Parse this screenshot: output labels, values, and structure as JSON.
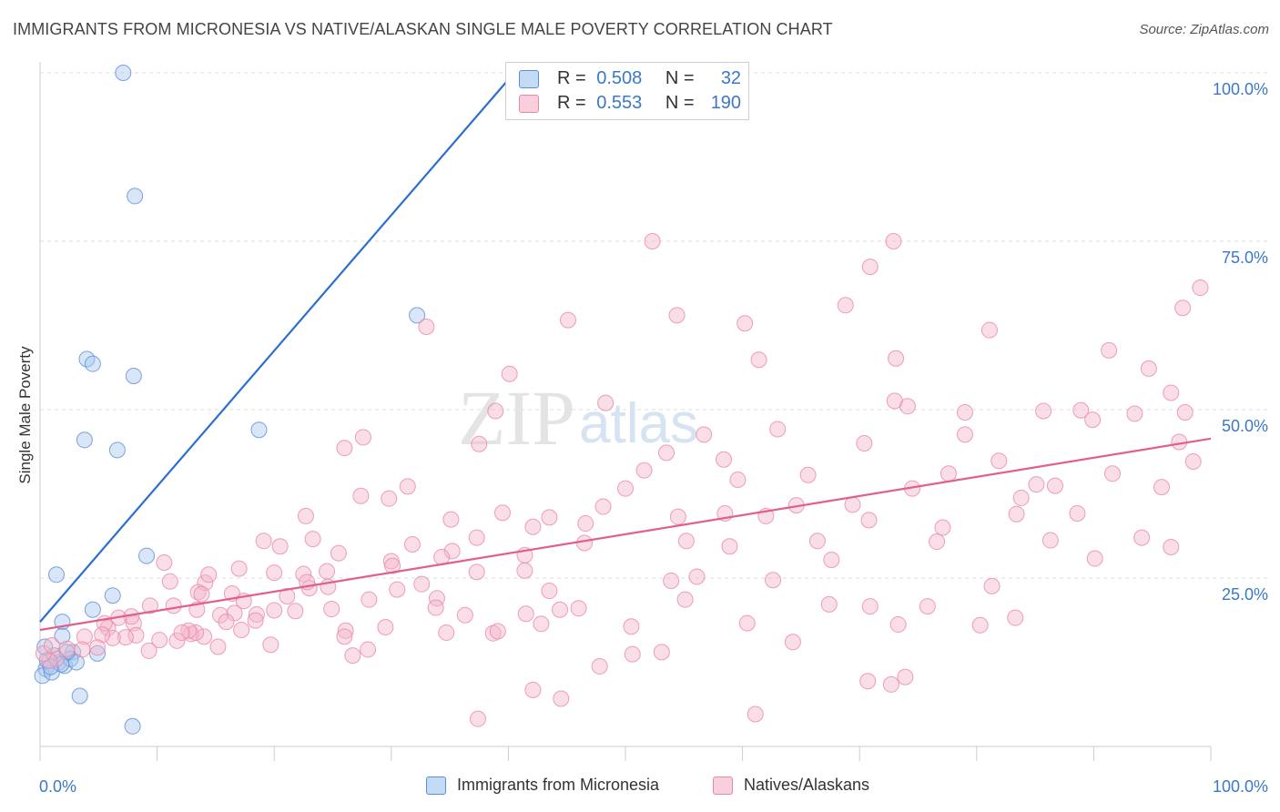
{
  "header": {
    "title": "IMMIGRANTS FROM MICRONESIA VS NATIVE/ALASKAN SINGLE MALE POVERTY CORRELATION CHART",
    "source": "Source: ZipAtlas.com"
  },
  "watermark": {
    "zip": "ZIP",
    "atlas": "atlas"
  },
  "legend": {
    "r_label": "R =",
    "n_label": "N =",
    "entries": [
      {
        "r": "0.508",
        "n": "32",
        "color": "#a9c8f0"
      },
      {
        "r": "0.553",
        "n": "190",
        "color": "#f5b5c9"
      }
    ]
  },
  "colors": {
    "blue_fill": "#a9c8f0",
    "blue_stroke": "#5b8fd4",
    "blue_line": "#2c6fcf",
    "pink_fill": "#f5b5c9",
    "pink_stroke": "#e888a8",
    "pink_line": "#e0608a",
    "grid": "#dddddd",
    "axis_label": "#3a78c8"
  },
  "chart_data": {
    "type": "scatter",
    "title": "IMMIGRANTS FROM MICRONESIA VS NATIVE/ALASKAN SINGLE MALE POVERTY CORRELATION CHART",
    "xlabel": "",
    "ylabel": "Single Male Poverty",
    "xlim": [
      0,
      100
    ],
    "ylim": [
      0,
      100
    ],
    "x_tick_labels": [
      "0.0%",
      "100.0%"
    ],
    "y_tick_labels": [
      "25.0%",
      "50.0%",
      "75.0%",
      "100.0%"
    ],
    "y_tick_values": [
      25,
      50,
      75,
      100
    ],
    "grid": true,
    "legend_position": "bottom",
    "series": [
      {
        "name": "Immigrants from Micronesia",
        "color": "#a9c8f0",
        "r": 0.508,
        "n": 32,
        "trend": {
          "x": [
            0,
            40.5
          ],
          "y": [
            18.5,
            100
          ]
        },
        "points": [
          [
            7.1,
            100
          ],
          [
            8.1,
            81.7
          ],
          [
            4.0,
            57.5
          ],
          [
            3.8,
            45.5
          ],
          [
            6.6,
            44
          ],
          [
            8.0,
            55
          ],
          [
            1.4,
            25.5
          ],
          [
            1.9,
            18.5
          ],
          [
            4.5,
            56.8
          ],
          [
            9.1,
            28.3
          ],
          [
            18.7,
            47
          ],
          [
            32.2,
            64
          ],
          [
            6.2,
            22.4
          ],
          [
            4.5,
            20.3
          ],
          [
            1.9,
            16.4
          ],
          [
            2.8,
            14
          ],
          [
            4.9,
            13.8
          ],
          [
            1.6,
            12.5
          ],
          [
            2.1,
            12
          ],
          [
            0.5,
            11.5
          ],
          [
            0.2,
            10.5
          ],
          [
            1.0,
            11
          ],
          [
            2.6,
            13
          ],
          [
            3.1,
            12.5
          ],
          [
            3.4,
            7.5
          ],
          [
            7.9,
            3
          ],
          [
            0.6,
            12.8
          ],
          [
            1.2,
            13.5
          ],
          [
            2.3,
            14
          ],
          [
            0.4,
            14.8
          ],
          [
            1.8,
            12.2
          ],
          [
            0.9,
            11.8
          ]
        ]
      },
      {
        "name": "Natives/Alaskans",
        "color": "#f5b5c9",
        "r": 0.553,
        "n": 190,
        "trend": {
          "x": [
            0,
            100
          ],
          "y": [
            17.3,
            45.7
          ]
        },
        "points": [
          [
            52.3,
            75
          ],
          [
            72.9,
            75
          ],
          [
            70.9,
            71.2
          ],
          [
            99.1,
            68.1
          ],
          [
            68.8,
            65.5
          ],
          [
            73.1,
            57.6
          ],
          [
            91.3,
            58.8
          ],
          [
            94.7,
            56.1
          ],
          [
            97.6,
            65.1
          ],
          [
            33.0,
            62.3
          ],
          [
            45.1,
            63.3
          ],
          [
            54.4,
            64
          ],
          [
            60.2,
            62.8
          ],
          [
            61.4,
            57.4
          ],
          [
            81.1,
            61.8
          ],
          [
            70.4,
            45
          ],
          [
            74.1,
            50.5
          ],
          [
            79.0,
            49.6
          ],
          [
            73.0,
            51.3
          ],
          [
            89.9,
            48.5
          ],
          [
            96.6,
            52.5
          ],
          [
            97.8,
            49.6
          ],
          [
            85.7,
            49.8
          ],
          [
            88.9,
            49.9
          ],
          [
            93.5,
            49.4
          ],
          [
            97.3,
            45.2
          ],
          [
            98.5,
            42.3
          ],
          [
            40.1,
            55.3
          ],
          [
            31.4,
            38.6
          ],
          [
            27.6,
            45.9
          ],
          [
            26.0,
            44.3
          ],
          [
            37.5,
            44.9
          ],
          [
            38.9,
            49.8
          ],
          [
            48.3,
            51
          ],
          [
            56.7,
            46.3
          ],
          [
            69.4,
            35.9
          ],
          [
            74.5,
            38.3
          ],
          [
            77.6,
            40.5
          ],
          [
            79.0,
            46.3
          ],
          [
            81.9,
            42.4
          ],
          [
            85.1,
            38.9
          ],
          [
            86.7,
            38.7
          ],
          [
            91.6,
            40.5
          ],
          [
            94.1,
            31
          ],
          [
            95.8,
            38.5
          ],
          [
            96.6,
            29.6
          ],
          [
            90.1,
            27.9
          ],
          [
            86.3,
            30.6
          ],
          [
            88.6,
            34.6
          ],
          [
            83.8,
            36.9
          ],
          [
            83.4,
            34.5
          ],
          [
            63.0,
            47.1
          ],
          [
            65.6,
            40.3
          ],
          [
            58.5,
            34.6
          ],
          [
            53.5,
            43.6
          ],
          [
            54.5,
            34.1
          ],
          [
            51.6,
            41
          ],
          [
            48.1,
            35.6
          ],
          [
            50.0,
            38.3
          ],
          [
            41.4,
            28.4
          ],
          [
            42.1,
            32.6
          ],
          [
            46.6,
            33.1
          ],
          [
            37.3,
            31
          ],
          [
            39.5,
            34.7
          ],
          [
            35.2,
            29
          ],
          [
            35.1,
            33.7
          ],
          [
            31.8,
            30
          ],
          [
            27.4,
            37.2
          ],
          [
            29.8,
            36.8
          ],
          [
            22.7,
            34.2
          ],
          [
            23.3,
            30.8
          ],
          [
            20.5,
            29.7
          ],
          [
            22.5,
            25.6
          ],
          [
            24.5,
            26
          ],
          [
            24.6,
            23.7
          ],
          [
            23.0,
            23.5
          ],
          [
            20.0,
            25.8
          ],
          [
            17.0,
            26.4
          ],
          [
            16.4,
            22.7
          ],
          [
            14.1,
            24.3
          ],
          [
            13.5,
            22.9
          ],
          [
            13.4,
            20.3
          ],
          [
            10.6,
            27.3
          ],
          [
            11.4,
            20.9
          ],
          [
            8.0,
            18.3
          ],
          [
            7.8,
            19.3
          ],
          [
            6.7,
            19.1
          ],
          [
            5.8,
            17.6
          ],
          [
            8.2,
            16.5
          ],
          [
            10.2,
            15.8
          ],
          [
            11.7,
            15.7
          ],
          [
            9.3,
            14.2
          ],
          [
            7.3,
            16.2
          ],
          [
            6.2,
            16.1
          ],
          [
            5.5,
            18.3
          ],
          [
            5.3,
            16.6
          ],
          [
            4.9,
            14.7
          ],
          [
            3.8,
            16.3
          ],
          [
            3.6,
            14.4
          ],
          [
            2.3,
            14.5
          ],
          [
            1.4,
            13
          ],
          [
            0.8,
            12.7
          ],
          [
            0.3,
            13.8
          ],
          [
            1.0,
            15
          ],
          [
            19.1,
            30.5
          ],
          [
            20.0,
            20.2
          ],
          [
            17.4,
            21.6
          ],
          [
            18.5,
            19.6
          ],
          [
            16.6,
            19.8
          ],
          [
            17.2,
            17.3
          ],
          [
            15.2,
            14.8
          ],
          [
            14.0,
            16.3
          ],
          [
            12.9,
            16.7
          ],
          [
            13.3,
            16.9
          ],
          [
            12.7,
            17.2
          ],
          [
            12.1,
            16.9
          ],
          [
            13.8,
            22.6
          ],
          [
            14.4,
            25.5
          ],
          [
            15.4,
            19.5
          ],
          [
            21.8,
            20.1
          ],
          [
            22.8,
            24.4
          ],
          [
            24.9,
            20.4
          ],
          [
            26.1,
            17.2
          ],
          [
            28.1,
            21.8
          ],
          [
            26.0,
            16.3
          ],
          [
            28.0,
            14.4
          ],
          [
            29.5,
            17.7
          ],
          [
            30.5,
            23.3
          ],
          [
            30.0,
            27.5
          ],
          [
            32.6,
            24.1
          ],
          [
            33.9,
            22
          ],
          [
            33.8,
            20.6
          ],
          [
            34.7,
            16.9
          ],
          [
            36.3,
            19.5
          ],
          [
            37.3,
            25.9
          ],
          [
            38.7,
            16.8
          ],
          [
            39.1,
            17.1
          ],
          [
            41.5,
            19.7
          ],
          [
            41.4,
            26.1
          ],
          [
            42.8,
            18.2
          ],
          [
            43.5,
            23.1
          ],
          [
            44.4,
            20.3
          ],
          [
            42.1,
            8.4
          ],
          [
            44.5,
            7.1
          ],
          [
            37.4,
            4.1
          ],
          [
            47.8,
            11.9
          ],
          [
            50.6,
            13.7
          ],
          [
            50.5,
            17.8
          ],
          [
            53.1,
            14
          ],
          [
            55.1,
            21.8
          ],
          [
            55.2,
            30.5
          ],
          [
            56.1,
            25.2
          ],
          [
            58.9,
            29.7
          ],
          [
            60.4,
            18.3
          ],
          [
            62.6,
            24.7
          ],
          [
            64.3,
            15.5
          ],
          [
            64.6,
            35.8
          ],
          [
            66.4,
            30.5
          ],
          [
            67.6,
            27.7
          ],
          [
            67.4,
            21.1
          ],
          [
            70.9,
            20.8
          ],
          [
            73.3,
            18.1
          ],
          [
            70.7,
            9.7
          ],
          [
            72.7,
            9.2
          ],
          [
            73.9,
            10.3
          ],
          [
            80.3,
            18
          ],
          [
            83.3,
            19.1
          ],
          [
            75.8,
            20.8
          ],
          [
            76.6,
            30.4
          ],
          [
            77.1,
            32.5
          ],
          [
            81.3,
            23.8
          ],
          [
            70.8,
            33.6
          ],
          [
            62.0,
            34.2
          ],
          [
            59.6,
            39.6
          ],
          [
            58.4,
            42.6
          ],
          [
            53.9,
            24.6
          ],
          [
            61.1,
            4.8
          ],
          [
            46.5,
            30.2
          ],
          [
            43.5,
            34
          ],
          [
            46.0,
            20.5
          ],
          [
            34.3,
            28.1
          ],
          [
            30.1,
            26.8
          ],
          [
            25.5,
            28.7
          ],
          [
            26.7,
            13.5
          ],
          [
            19.7,
            15.1
          ],
          [
            21.1,
            22.3
          ],
          [
            18.4,
            18.7
          ],
          [
            15.9,
            18.5
          ],
          [
            11.1,
            24.5
          ],
          [
            9.4,
            20.9
          ]
        ]
      }
    ]
  }
}
